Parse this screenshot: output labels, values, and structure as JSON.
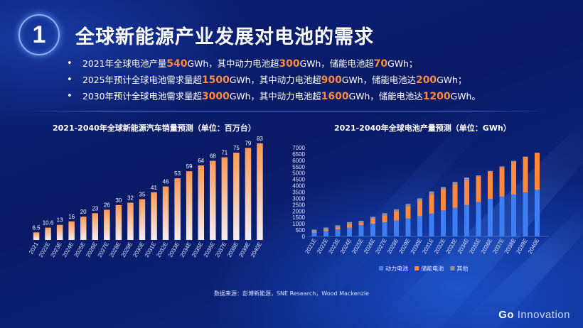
{
  "slide": {
    "number": "1",
    "title": "全球新能源产业发展对电池的需求",
    "bullets": [
      {
        "pre": "2021年全球电池产量",
        "h1": "540",
        "mid1": "GWh，其中动力电池超",
        "h2": "300",
        "mid2": "GWh，储能电池超",
        "h3": "70",
        "post": "GWh；"
      },
      {
        "pre": "2025年预计全球电池需求量超",
        "h1": "1500",
        "mid1": "GWh，其中动力电池超",
        "h2": "900",
        "mid2": "GWh，储能电池达",
        "h3": "200",
        "post": "GWh；"
      },
      {
        "pre": "2030年预计全球电池需求量超",
        "h1": "3000",
        "mid1": "GWh，其中动力电池超",
        "h2": "1600",
        "mid2": "GWh，储能电池达",
        "h3": "1200",
        "post": "GWh。"
      }
    ],
    "source": "数据来源：彭博新能源，SNE Research，Wood Mackenzie",
    "brand_go": "Go",
    "brand_innovation": "Innovation"
  },
  "chart_data": [
    {
      "type": "bar",
      "title": "2021-2040年全球新能源汽车销量预测（单位：百万台）",
      "categories": [
        "2021",
        "2022E",
        "2023E",
        "2024E",
        "2025E",
        "2026E",
        "2027E",
        "2028E",
        "2029E",
        "2030E",
        "2031E",
        "2032E",
        "2033E",
        "2034E",
        "2035E",
        "2036E",
        "2037E",
        "2038E",
        "2039E",
        "2040E"
      ],
      "values": [
        6.5,
        10.6,
        13,
        16,
        20,
        23,
        26,
        30,
        32,
        35,
        41,
        46,
        53,
        59,
        64,
        68,
        71,
        75,
        79,
        83
      ],
      "data_labels": [
        "6.5",
        "10.6",
        "13",
        "16",
        "20",
        "23",
        "26",
        "30",
        "32",
        "35",
        "41",
        "46",
        "53",
        "59",
        "64",
        "68",
        "71",
        "75",
        "79",
        "83"
      ],
      "ylim": [
        0,
        90
      ],
      "colors": {
        "top": "#ff9a55",
        "bottom": "#f2eef5"
      }
    },
    {
      "type": "bar",
      "stacked": true,
      "title": "2021-2040年全球电池产量预测（单位：GWh）",
      "categories": [
        "2021E",
        "2022E",
        "2023E",
        "2024E",
        "2025E",
        "2026E",
        "2027E",
        "2028E",
        "2029E",
        "2030E",
        "2031E",
        "2032E",
        "2033E",
        "2034E",
        "2035E",
        "2036E",
        "2037E",
        "2038E",
        "2039E",
        "2040E"
      ],
      "yticks": [
        "0",
        "500",
        "1000",
        "1500",
        "2000",
        "2500",
        "3000",
        "3500",
        "4000",
        "4500",
        "5000",
        "5500",
        "6000",
        "6500",
        "7000"
      ],
      "ylim": [
        0,
        7000
      ],
      "series": [
        {
          "name": "动力电池",
          "color": "#3d7ef5",
          "values": [
            300,
            420,
            550,
            680,
            900,
            1000,
            1120,
            1250,
            1420,
            1600,
            1800,
            2050,
            2250,
            2480,
            2700,
            2950,
            3150,
            3300,
            3480,
            3680
          ]
        },
        {
          "name": "储能电池",
          "color": "#ff8a3d",
          "values": [
            70,
            110,
            150,
            270,
            200,
            400,
            550,
            720,
            950,
            1200,
            1550,
            1650,
            1850,
            1960,
            2050,
            2150,
            2300,
            2600,
            2800,
            2900
          ]
        },
        {
          "name": "其他",
          "color": "#8a94a6",
          "values": [
            170,
            170,
            180,
            180,
            130,
            150,
            160,
            170,
            190,
            200,
            200,
            200,
            200,
            210,
            60,
            70,
            80,
            60,
            20,
            20
          ]
        }
      ],
      "legend_position": "bottom"
    }
  ]
}
